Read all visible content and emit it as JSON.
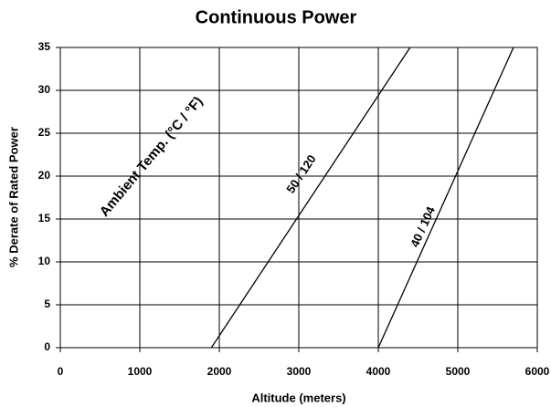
{
  "chart_data": {
    "type": "line",
    "title": "Continuous Power",
    "xlabel": "Altitude (meters)",
    "ylabel": "% Derate of Rated Power",
    "annotation": "Ambient Temp. (°C / °F)",
    "xlim": [
      0,
      6000
    ],
    "xticks": [
      0,
      1000,
      2000,
      3000,
      4000,
      5000,
      6000
    ],
    "ylim": [
      0,
      35
    ],
    "yticks": [
      0,
      5,
      10,
      15,
      20,
      25,
      30,
      35
    ],
    "grid": true,
    "series": [
      {
        "name": "50 / 120",
        "color": "#000000",
        "x": [
          1900,
          4400
        ],
        "values": [
          0,
          35
        ]
      },
      {
        "name": "40 / 104",
        "color": "#000000",
        "x": [
          4000,
          5700
        ],
        "values": [
          0,
          35
        ]
      }
    ]
  }
}
